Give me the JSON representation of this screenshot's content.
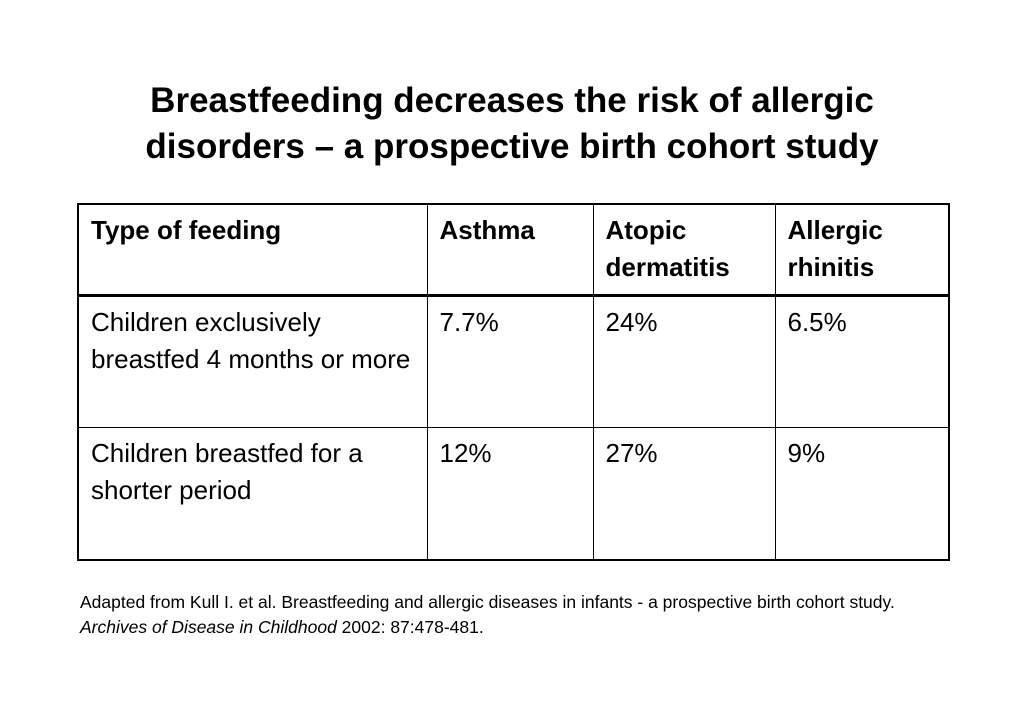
{
  "title": {
    "line1": "Breastfeeding decreases the risk of allergic",
    "line2": "disorders – a prospective birth cohort study"
  },
  "table": {
    "headers": [
      "Type of feeding",
      "Asthma",
      "Atopic dermatitis",
      "Allergic rhinitis"
    ],
    "rows": [
      [
        "Children exclusively breastfed 4 months or more",
        "7.7%",
        "24%",
        "6.5%"
      ],
      [
        "Children breastfed for a shorter period",
        "12%",
        "27%",
        "9%"
      ]
    ]
  },
  "citation": {
    "text": "Adapted from Kull I. et al. Breastfeeding and allergic diseases in infants - a prospective birth cohort study. ",
    "journal": "Archives of Disease in Childhood",
    "details": " 2002: 87:478-481."
  }
}
